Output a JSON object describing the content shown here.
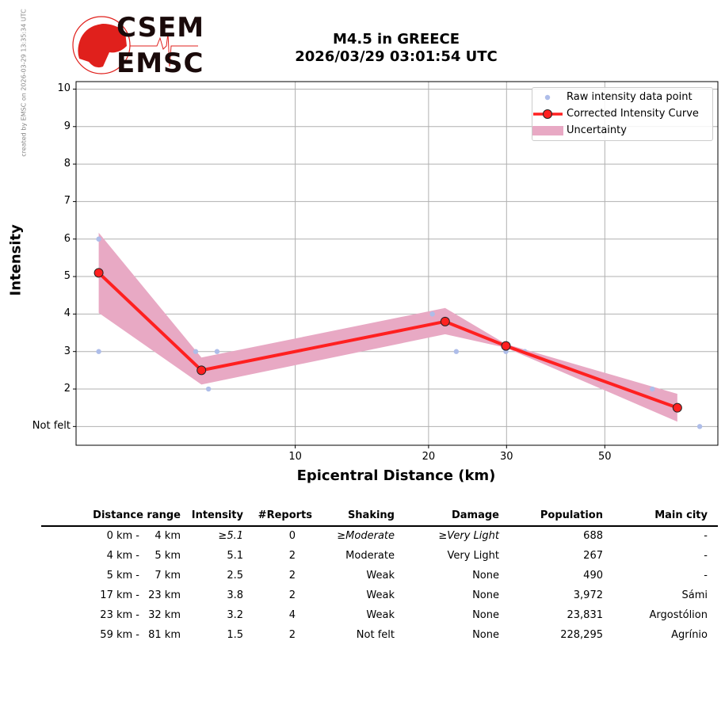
{
  "credit": "created by EMSC on 2026-03-29 13:35:34 UTC",
  "logo": {
    "top": "CSEM",
    "bottom": "EMSC"
  },
  "title": {
    "line1": "M4.5 in GREECE",
    "line2": "2026/03/29 03:01:54 UTC"
  },
  "colors": {
    "raw": "#aebde9",
    "curve": "#ff2020",
    "marker_edge": "#222222",
    "band": "#e8a9c4"
  },
  "chart_data": {
    "type": "line",
    "xlabel": "Epicentral Distance (km)",
    "ylabel": "Intensity",
    "xscale": "log",
    "xlim": [
      3.2,
      90
    ],
    "ylim": [
      0.5,
      10.2
    ],
    "xticks": [
      {
        "v": 10,
        "label": "10"
      },
      {
        "v": 20,
        "label": "20"
      },
      {
        "v": 30,
        "label": "30"
      },
      {
        "v": 50,
        "label": "50"
      }
    ],
    "yticks": [
      {
        "v": 1,
        "label": "Not felt"
      },
      {
        "v": 2,
        "label": "2"
      },
      {
        "v": 3,
        "label": "3"
      },
      {
        "v": 4,
        "label": "4"
      },
      {
        "v": 5,
        "label": "5"
      },
      {
        "v": 6,
        "label": "6"
      },
      {
        "v": 7,
        "label": "7"
      },
      {
        "v": 8,
        "label": "8"
      },
      {
        "v": 9,
        "label": "9"
      },
      {
        "v": 10,
        "label": "10"
      }
    ],
    "grid": true,
    "legend_position": "top-right",
    "series": [
      {
        "name": "Raw intensity data point",
        "kind": "scatter",
        "x": [
          3.6,
          3.6,
          5.96,
          6.37,
          6.66,
          20.4,
          23.1,
          29.9,
          33.0,
          64,
          81.9
        ],
        "y": [
          6,
          3,
          3,
          2,
          3,
          4,
          3,
          3,
          3,
          2,
          1
        ]
      },
      {
        "name": "Corrected Intensity Curve",
        "kind": "line",
        "x": [
          3.6,
          6.14,
          21.8,
          29.9,
          72.9
        ],
        "y": [
          5.1,
          2.5,
          3.8,
          3.15,
          1.5
        ]
      },
      {
        "name": "Uncertainty",
        "kind": "band",
        "x": [
          3.6,
          6.14,
          21.8,
          29.9,
          72.9
        ],
        "upper": [
          6.17,
          2.84,
          4.16,
          3.2,
          1.87
        ],
        "lower": [
          4.03,
          2.12,
          3.46,
          3.1,
          1.13
        ]
      }
    ]
  },
  "table": {
    "headers": [
      "Distance range",
      "Intensity",
      "#Reports",
      "Shaking",
      "Damage",
      "Population",
      "Main city"
    ],
    "rows": [
      {
        "from": "0 km -",
        "to": "4 km",
        "intensity": "≥5.1",
        "reports": "0",
        "shaking": "≥Moderate",
        "damage": "≥Very Light",
        "population": "688",
        "city": "-",
        "italic": true
      },
      {
        "from": "4 km -",
        "to": "5 km",
        "intensity": "5.1",
        "reports": "2",
        "shaking": "Moderate",
        "damage": "Very Light",
        "population": "267",
        "city": "-"
      },
      {
        "from": "5 km -",
        "to": "7 km",
        "intensity": "2.5",
        "reports": "2",
        "shaking": "Weak",
        "damage": "None",
        "population": "490",
        "city": "-"
      },
      {
        "from": "17 km -",
        "to": "23 km",
        "intensity": "3.8",
        "reports": "2",
        "shaking": "Weak",
        "damage": "None",
        "population": "3,972",
        "city": "Sámi"
      },
      {
        "from": "23 km -",
        "to": "32 km",
        "intensity": "3.2",
        "reports": "4",
        "shaking": "Weak",
        "damage": "None",
        "population": "23,831",
        "city": "Argostólion"
      },
      {
        "from": "59 km -",
        "to": "81 km",
        "intensity": "1.5",
        "reports": "2",
        "shaking": "Not felt",
        "damage": "None",
        "population": "228,295",
        "city": "Agrínio"
      }
    ]
  }
}
